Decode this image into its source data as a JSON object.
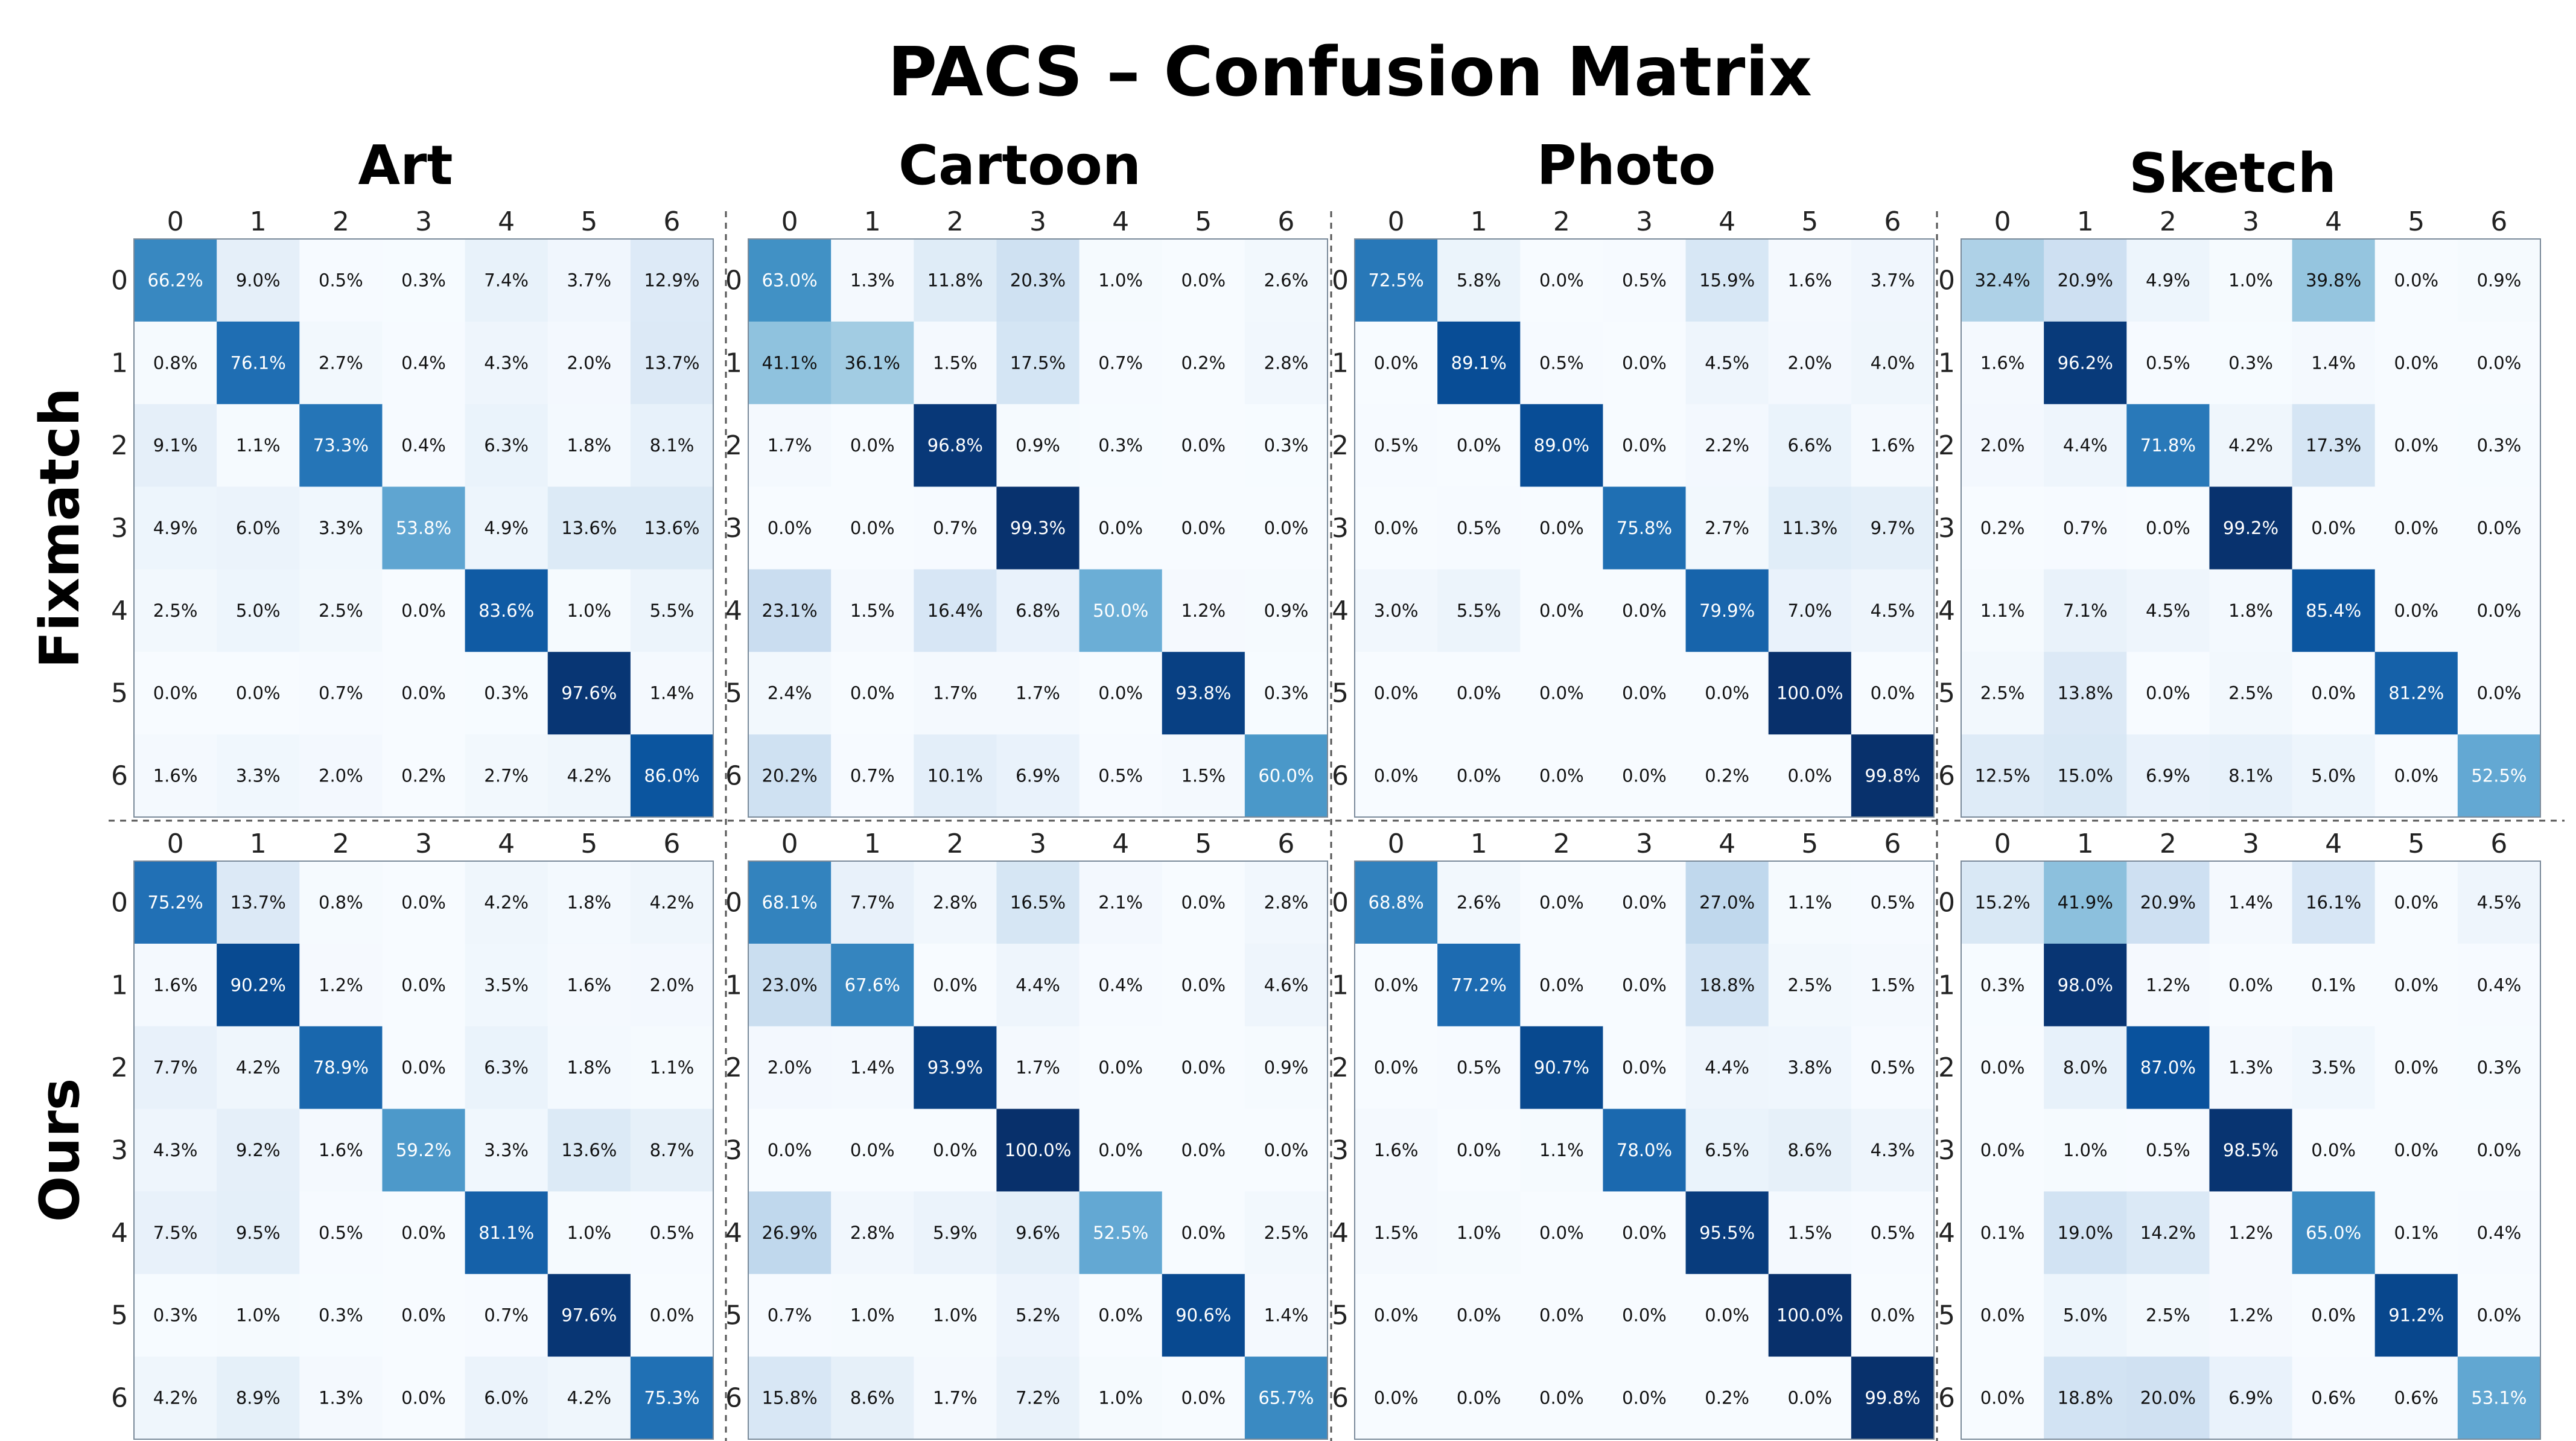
{
  "title": "PACS  –  Confusion Matrix",
  "colors": {
    "low": "#f7fbff",
    "high": "#08306b",
    "text_dark": "#111111",
    "text_light": "#ffffff"
  },
  "chart_data": {
    "type": "heatmap",
    "value_format": "percent",
    "class_labels": [
      "0",
      "1",
      "2",
      "3",
      "4",
      "5",
      "6"
    ],
    "row_groups": [
      "Fixmatch",
      "Ours"
    ],
    "domains": [
      "Art",
      "Cartoon",
      "Photo",
      "Sketch"
    ],
    "matrices": [
      {
        "method": "Fixmatch",
        "domain": "Art",
        "values": [
          [
            66.2,
            9.0,
            0.5,
            0.3,
            7.4,
            3.7,
            12.9
          ],
          [
            0.8,
            76.1,
            2.7,
            0.4,
            4.3,
            2.0,
            13.7
          ],
          [
            9.1,
            1.1,
            73.3,
            0.4,
            6.3,
            1.8,
            8.1
          ],
          [
            4.9,
            6.0,
            3.3,
            53.8,
            4.9,
            13.6,
            13.6
          ],
          [
            2.5,
            5.0,
            2.5,
            0.0,
            83.6,
            1.0,
            5.5
          ],
          [
            0.0,
            0.0,
            0.7,
            0.0,
            0.3,
            97.6,
            1.4
          ],
          [
            1.6,
            3.3,
            2.0,
            0.2,
            2.7,
            4.2,
            86.0
          ]
        ]
      },
      {
        "method": "Fixmatch",
        "domain": "Cartoon",
        "values": [
          [
            63.0,
            1.3,
            11.8,
            20.3,
            1.0,
            0.0,
            2.6
          ],
          [
            41.1,
            36.1,
            1.5,
            17.5,
            0.7,
            0.2,
            2.8
          ],
          [
            1.7,
            0.0,
            96.8,
            0.9,
            0.3,
            0.0,
            0.3
          ],
          [
            0.0,
            0.0,
            0.7,
            99.3,
            0.0,
            0.0,
            0.0
          ],
          [
            23.1,
            1.5,
            16.4,
            6.8,
            50.0,
            1.2,
            0.9
          ],
          [
            2.4,
            0.0,
            1.7,
            1.7,
            0.0,
            93.8,
            0.3
          ],
          [
            20.2,
            0.7,
            10.1,
            6.9,
            0.5,
            1.5,
            60.0
          ]
        ]
      },
      {
        "method": "Fixmatch",
        "domain": "Photo",
        "values": [
          [
            72.5,
            5.8,
            0.0,
            0.5,
            15.9,
            1.6,
            3.7
          ],
          [
            0.0,
            89.1,
            0.5,
            0.0,
            4.5,
            2.0,
            4.0
          ],
          [
            0.5,
            0.0,
            89.0,
            0.0,
            2.2,
            6.6,
            1.6
          ],
          [
            0.0,
            0.5,
            0.0,
            75.8,
            2.7,
            11.3,
            9.7
          ],
          [
            3.0,
            5.5,
            0.0,
            0.0,
            79.9,
            7.0,
            4.5
          ],
          [
            0.0,
            0.0,
            0.0,
            0.0,
            0.0,
            100.0,
            0.0
          ],
          [
            0.0,
            0.0,
            0.0,
            0.0,
            0.2,
            0.0,
            99.8
          ]
        ]
      },
      {
        "method": "Fixmatch",
        "domain": "Sketch",
        "values": [
          [
            32.4,
            20.9,
            4.9,
            1.0,
            39.8,
            0.0,
            0.9
          ],
          [
            1.6,
            96.2,
            0.5,
            0.3,
            1.4,
            0.0,
            0.0
          ],
          [
            2.0,
            4.4,
            71.8,
            4.2,
            17.3,
            0.0,
            0.3
          ],
          [
            0.2,
            0.7,
            0.0,
            99.2,
            0.0,
            0.0,
            0.0
          ],
          [
            1.1,
            7.1,
            4.5,
            1.8,
            85.4,
            0.0,
            0.0
          ],
          [
            2.5,
            13.8,
            0.0,
            2.5,
            0.0,
            81.2,
            0.0
          ],
          [
            12.5,
            15.0,
            6.9,
            8.1,
            5.0,
            0.0,
            52.5
          ]
        ]
      },
      {
        "method": "Ours",
        "domain": "Art",
        "values": [
          [
            75.2,
            13.7,
            0.8,
            0.0,
            4.2,
            1.8,
            4.2
          ],
          [
            1.6,
            90.2,
            1.2,
            0.0,
            3.5,
            1.6,
            2.0
          ],
          [
            7.7,
            4.2,
            78.9,
            0.0,
            6.3,
            1.8,
            1.1
          ],
          [
            4.3,
            9.2,
            1.6,
            59.2,
            3.3,
            13.6,
            8.7
          ],
          [
            7.5,
            9.5,
            0.5,
            0.0,
            81.1,
            1.0,
            0.5
          ],
          [
            0.3,
            1.0,
            0.3,
            0.0,
            0.7,
            97.6,
            0.0
          ],
          [
            4.2,
            8.9,
            1.3,
            0.0,
            6.0,
            4.2,
            75.3
          ]
        ]
      },
      {
        "method": "Ours",
        "domain": "Cartoon",
        "values": [
          [
            68.1,
            7.7,
            2.8,
            16.5,
            2.1,
            0.0,
            2.8
          ],
          [
            23.0,
            67.6,
            0.0,
            4.4,
            0.4,
            0.0,
            4.6
          ],
          [
            2.0,
            1.4,
            93.9,
            1.7,
            0.0,
            0.0,
            0.9
          ],
          [
            0.0,
            0.0,
            0.0,
            100.0,
            0.0,
            0.0,
            0.0
          ],
          [
            26.9,
            2.8,
            5.9,
            9.6,
            52.5,
            0.0,
            2.5
          ],
          [
            0.7,
            1.0,
            1.0,
            5.2,
            0.0,
            90.6,
            1.4
          ],
          [
            15.8,
            8.6,
            1.7,
            7.2,
            1.0,
            0.0,
            65.7
          ]
        ]
      },
      {
        "method": "Ours",
        "domain": "Photo",
        "values": [
          [
            68.8,
            2.6,
            0.0,
            0.0,
            27.0,
            1.1,
            0.5
          ],
          [
            0.0,
            77.2,
            0.0,
            0.0,
            18.8,
            2.5,
            1.5
          ],
          [
            0.0,
            0.5,
            90.7,
            0.0,
            4.4,
            3.8,
            0.5
          ],
          [
            1.6,
            0.0,
            1.1,
            78.0,
            6.5,
            8.6,
            4.3
          ],
          [
            1.5,
            1.0,
            0.0,
            0.0,
            95.5,
            1.5,
            0.5
          ],
          [
            0.0,
            0.0,
            0.0,
            0.0,
            0.0,
            100.0,
            0.0
          ],
          [
            0.0,
            0.0,
            0.0,
            0.0,
            0.2,
            0.0,
            99.8
          ]
        ]
      },
      {
        "method": "Ours",
        "domain": "Sketch",
        "values": [
          [
            15.2,
            41.9,
            20.9,
            1.4,
            16.1,
            0.0,
            4.5
          ],
          [
            0.3,
            98.0,
            1.2,
            0.0,
            0.1,
            0.0,
            0.4
          ],
          [
            0.0,
            8.0,
            87.0,
            1.3,
            3.5,
            0.0,
            0.3
          ],
          [
            0.0,
            1.0,
            0.5,
            98.5,
            0.0,
            0.0,
            0.0
          ],
          [
            0.1,
            19.0,
            14.2,
            1.2,
            65.0,
            0.1,
            0.4
          ],
          [
            0.0,
            5.0,
            2.5,
            1.2,
            0.0,
            91.2,
            0.0
          ],
          [
            0.0,
            18.8,
            20.0,
            6.9,
            0.6,
            0.6,
            53.1
          ]
        ]
      }
    ]
  }
}
